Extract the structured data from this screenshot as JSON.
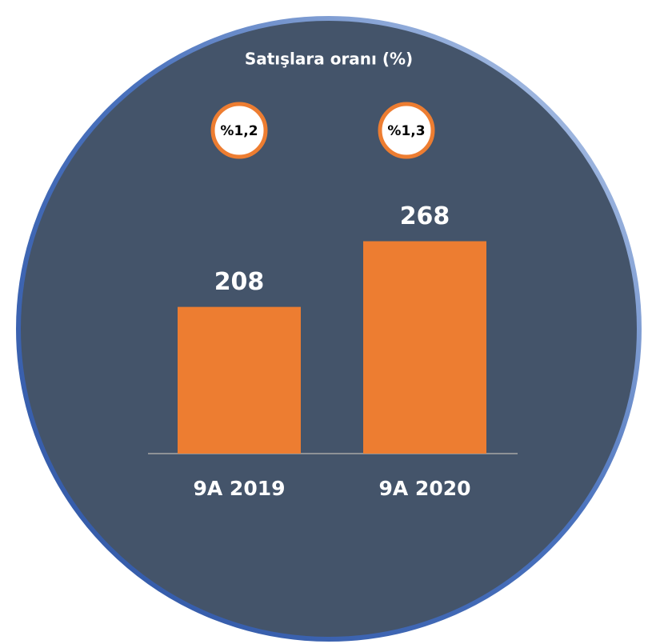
{
  "chart_data": {
    "type": "bar",
    "subtitle": "Satışlara oranı (%)",
    "categories": [
      "9A 2019",
      "9A 2020"
    ],
    "values": [
      208,
      268
    ],
    "annotations": [
      "%1,2",
      "%1,3"
    ],
    "color": "#ed7d31",
    "ylim": [
      74,
      340
    ]
  }
}
